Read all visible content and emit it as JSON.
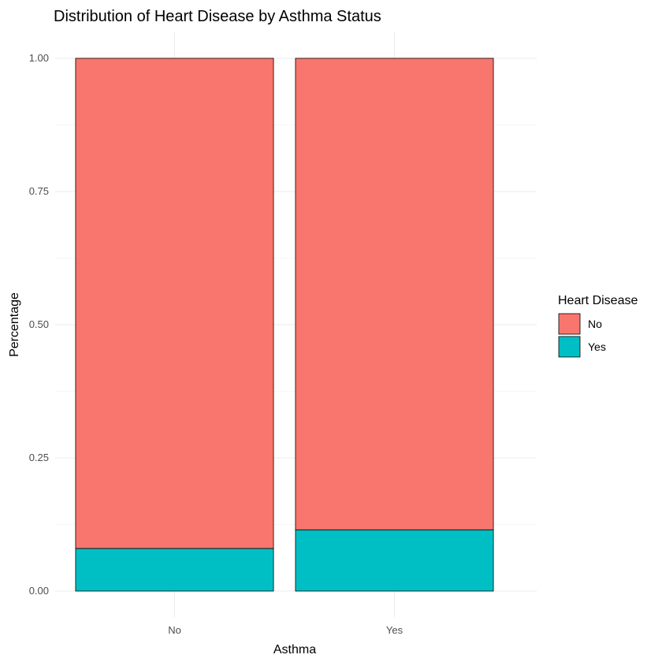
{
  "chart_data": {
    "type": "bar",
    "stacked": true,
    "title": "Distribution of Heart Disease by Asthma Status",
    "xlabel": "Asthma",
    "ylabel": "Percentage",
    "categories": [
      "No",
      "Yes"
    ],
    "ylim": [
      0,
      1
    ],
    "yticks": [
      "0.00",
      "0.25",
      "0.50",
      "0.75",
      "1.00"
    ],
    "yticks_values": [
      0,
      0.25,
      0.5,
      0.75,
      1
    ],
    "grid": true,
    "legend": {
      "title": "Heart Disease",
      "position": "right",
      "entries": [
        "No",
        "Yes"
      ]
    },
    "series": [
      {
        "name": "Yes",
        "values": [
          0.08,
          0.115
        ],
        "color": "#00BFC4"
      },
      {
        "name": "No",
        "values": [
          0.92,
          0.885
        ],
        "color": "#F8766D"
      }
    ]
  }
}
